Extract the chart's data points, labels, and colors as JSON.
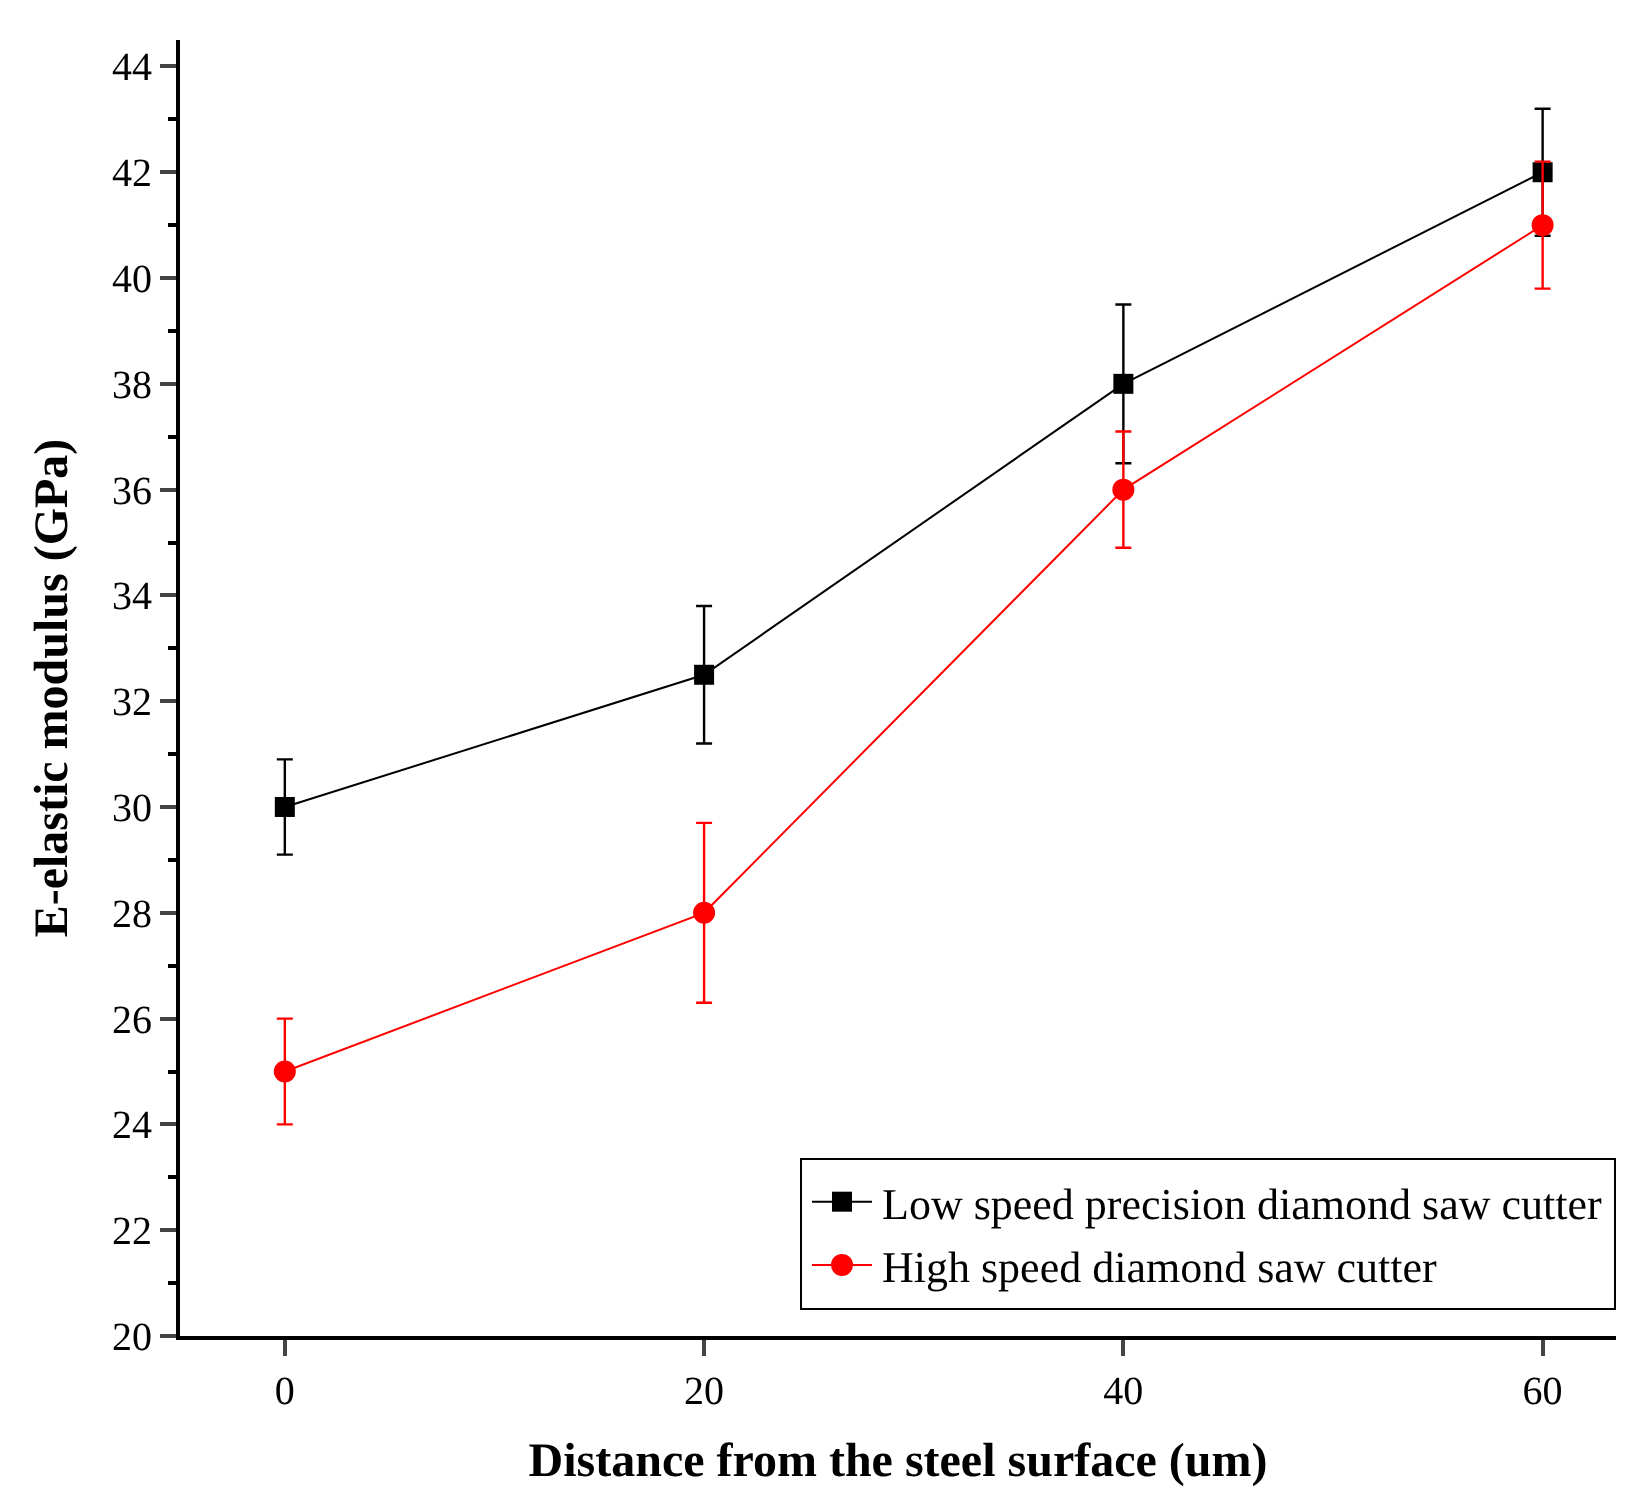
{
  "chart_data": {
    "type": "line",
    "xlabel": "Distance from the steel surface (um)",
    "ylabel": "E-elastic modulus (GPa)",
    "x": [
      0,
      20,
      40,
      60
    ],
    "series": [
      {
        "name": "Low speed precision diamond saw cutter",
        "color": "#000000",
        "marker": "square",
        "values": [
          30,
          32.5,
          38,
          42
        ],
        "errors": [
          0.9,
          1.3,
          1.5,
          [
            40.8,
            43.2
          ]
        ]
      },
      {
        "name": "High speed diamond saw cutter",
        "color": "#ff0000",
        "marker": "circle",
        "values": [
          25,
          28,
          36,
          41
        ],
        "errors": [
          1,
          1.7,
          1.1,
          [
            39.8,
            42.2
          ]
        ]
      }
    ],
    "xlim": [
      -5,
      63.5
    ],
    "xticks": [
      0,
      20,
      40,
      60
    ],
    "ylim": [
      20,
      44.5
    ],
    "yticks": [
      20,
      22,
      24,
      26,
      28,
      30,
      32,
      34,
      36,
      38,
      40,
      42,
      44
    ],
    "legend": "bottom right",
    "line_style": "solid"
  }
}
